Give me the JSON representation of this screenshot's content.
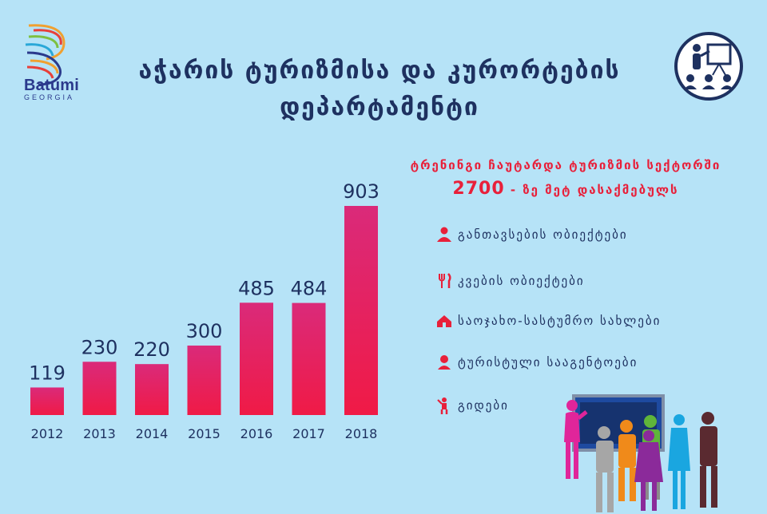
{
  "logo": {
    "name": "Batumi",
    "sub": "GEORGIA"
  },
  "title": {
    "line1": "აჭარის  ტურიზმისა და კურორტების",
    "line2": "დეპარტამენტი"
  },
  "headline": {
    "line1": "ტრენინგი ჩაუტარდა ტურიზმის სექტორში",
    "number": "2700",
    "rest": " - ზე მეტ დასაქმებულს"
  },
  "categories": [
    {
      "icon": "person-icon",
      "label": "განთავსების ობიექტები"
    },
    {
      "icon": "fork-knife-icon",
      "label": "კვების ობიექტები"
    },
    {
      "icon": "house-icon",
      "label": "საოჯახო-სასტუმრო სახლები"
    },
    {
      "icon": "user-pin-icon",
      "label": "ტურისტული სააგენტოები"
    },
    {
      "icon": "guide-icon",
      "label": "გიდები"
    }
  ],
  "colors": {
    "bar_top": "#da2a7a",
    "bar_bottom": "#f01a46",
    "title": "#1e3160",
    "accent": "#e8203a",
    "background": "#b6e3f7"
  },
  "chart_data": {
    "type": "bar",
    "categories": [
      "2012",
      "2013",
      "2014",
      "2015",
      "2016",
      "2017",
      "2018"
    ],
    "values": [
      119,
      230,
      220,
      300,
      485,
      484,
      903
    ],
    "value_labels": [
      "119",
      "230",
      "220",
      "300",
      "485",
      "484",
      "903"
    ],
    "title": "",
    "xlabel": "",
    "ylabel": "",
    "ylim": [
      0,
      903
    ],
    "grid": false,
    "legend": "none"
  }
}
